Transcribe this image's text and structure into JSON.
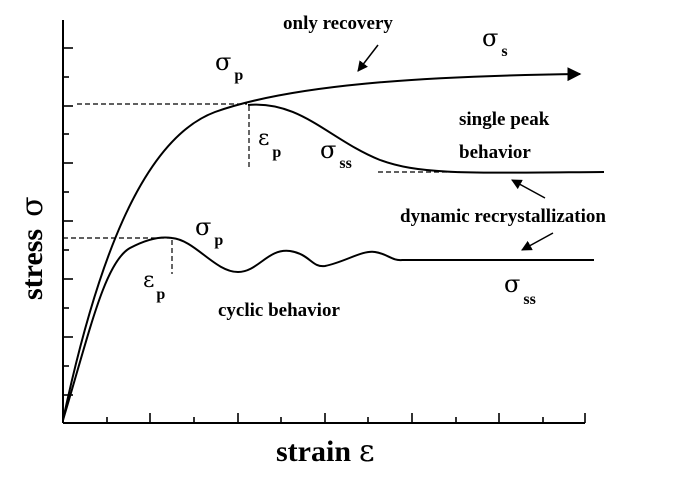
{
  "axes": {
    "y_label": "stress",
    "y_symbol": "σ",
    "x_label": "strain",
    "x_symbol": "ε"
  },
  "upper": {
    "only_recovery": "only recovery",
    "sigma_s": {
      "symbol": "σ",
      "sub": "s"
    },
    "sigma_p": {
      "symbol": "σ",
      "sub": "p"
    },
    "eps_p": {
      "symbol": "ε",
      "sub": "p"
    },
    "sigma_ss": {
      "symbol": "σ",
      "sub": "ss"
    },
    "single_peak_1": "single peak",
    "single_peak_2": "behavior"
  },
  "middle": {
    "dynamic_recrystallization": "dynamic recrystallization"
  },
  "lower": {
    "sigma_p": {
      "symbol": "σ",
      "sub": "p"
    },
    "eps_p": {
      "symbol": "ε",
      "sub": "p"
    },
    "cyclic_behavior": "cyclic behavior",
    "sigma_ss": {
      "symbol": "σ",
      "sub": "ss"
    }
  }
}
